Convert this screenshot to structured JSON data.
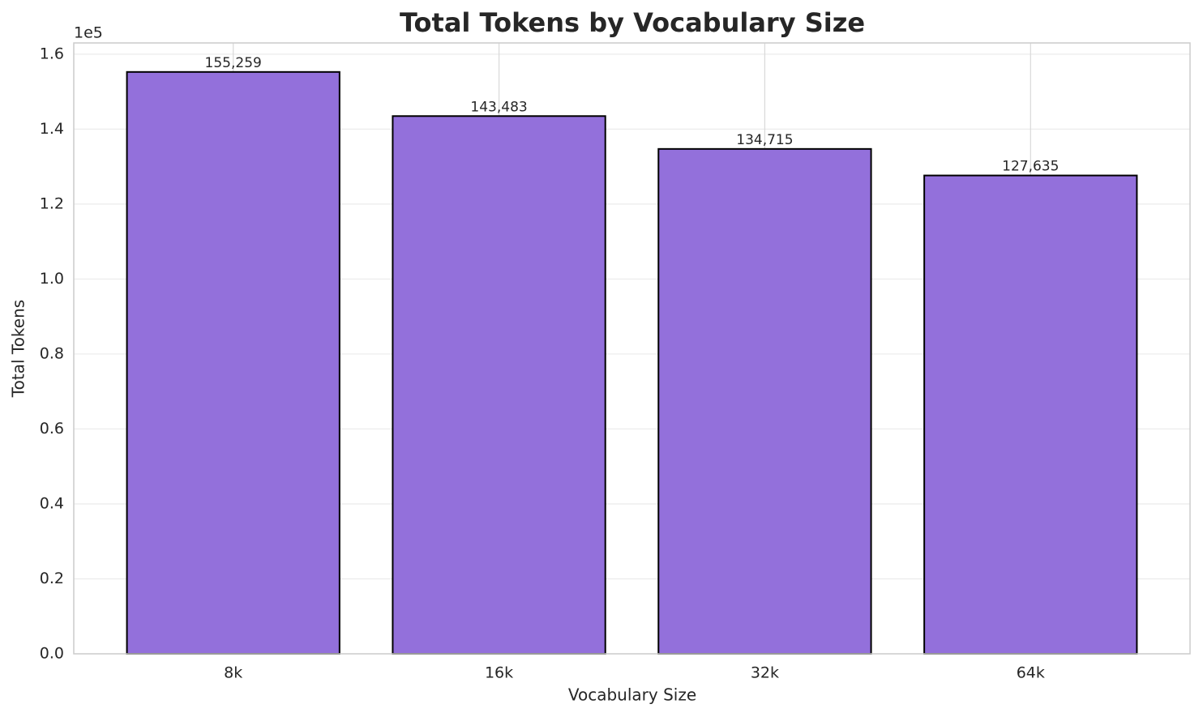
{
  "chart_data": {
    "type": "bar",
    "title": "Total Tokens by Vocabulary Size",
    "x_label": "Vocabulary Size",
    "y_label": "Total Tokens",
    "y_offset_label": "1e5",
    "categories": [
      "8k",
      "16k",
      "32k",
      "64k"
    ],
    "values": [
      155259,
      143483,
      134715,
      127635
    ],
    "value_labels": [
      "155,259",
      "143,483",
      "134,715",
      "127,635"
    ],
    "color": "#9370db",
    "edgecolor": "#000000",
    "ylim": [
      0,
      163000
    ],
    "yticks": [
      {
        "value": 0,
        "label": "0.0"
      },
      {
        "value": 20000,
        "label": "0.2"
      },
      {
        "value": 40000,
        "label": "0.4"
      },
      {
        "value": 60000,
        "label": "0.6"
      },
      {
        "value": 80000,
        "label": "0.8"
      },
      {
        "value": 100000,
        "label": "1.0"
      },
      {
        "value": 120000,
        "label": "1.2"
      },
      {
        "value": 140000,
        "label": "1.4"
      },
      {
        "value": 160000,
        "label": "1.6"
      }
    ],
    "grid": true
  }
}
